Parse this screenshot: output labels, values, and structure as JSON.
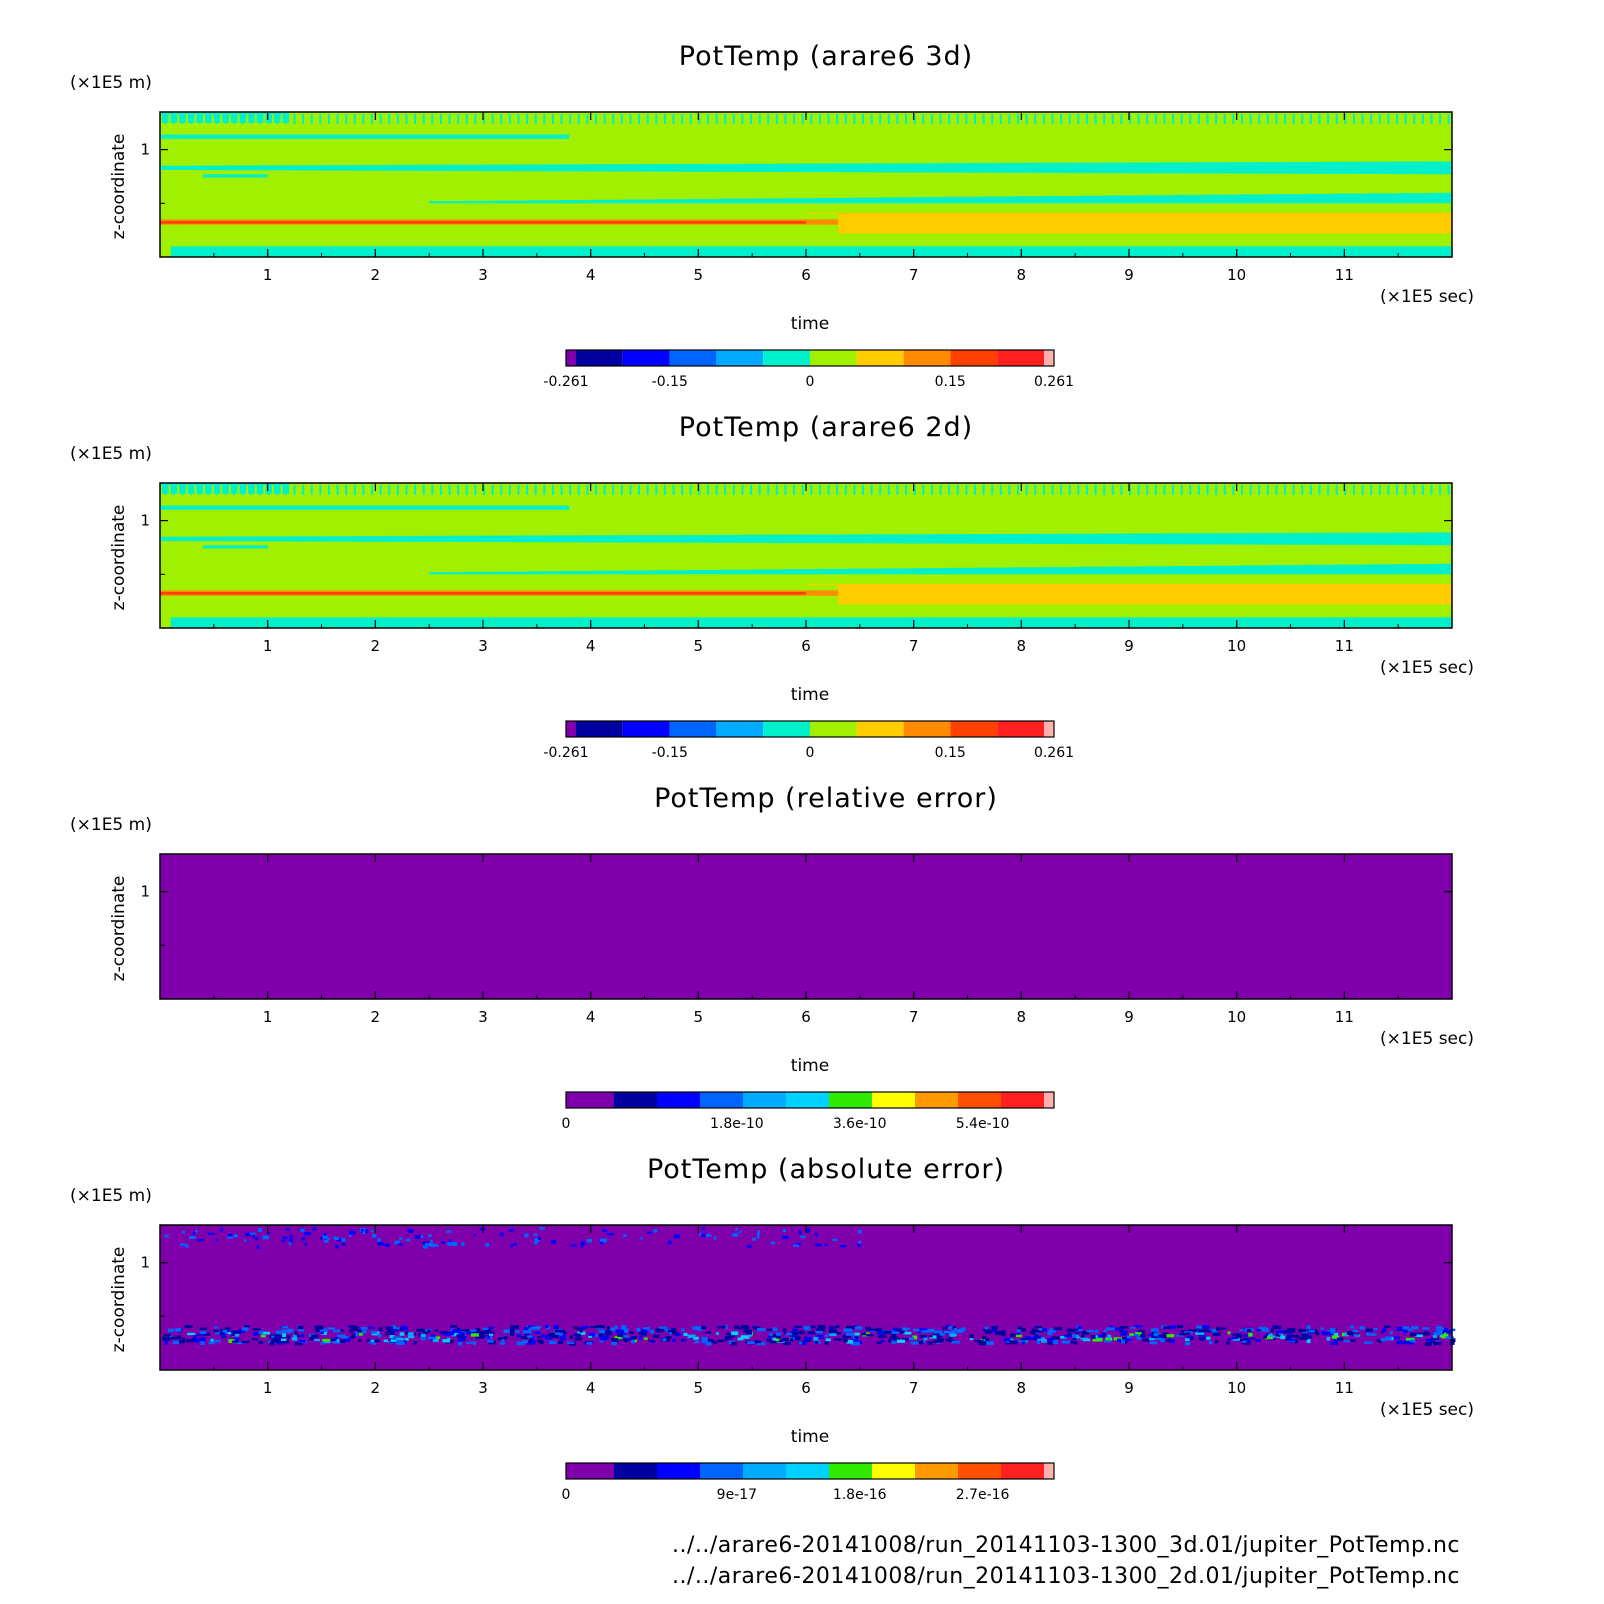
{
  "footer": {
    "line1": "../../arare6-20141008/run_20141103-1300_3d.01/jupiter_PotTemp.nc",
    "line2": "../../arare6-20141008/run_20141103-1300_2d.01/jupiter_PotTemp.nc"
  },
  "chart_data": [
    {
      "type": "heatmap",
      "title": "PotTemp (arare6 3d)",
      "xlabel": "time",
      "ylabel": "z-coordinate",
      "x_unit": "(×1E5 sec)",
      "y_unit": "(×1E5 m)",
      "xlim": [
        0,
        12
      ],
      "x_ticks": [
        "1",
        "2",
        "3",
        "4",
        "5",
        "6",
        "7",
        "8",
        "9",
        "10",
        "11"
      ],
      "y_ticks": [
        "1"
      ],
      "colorbar": {
        "colors": [
          "#7f00aa",
          "#0000a0",
          "#0000ff",
          "#0064ff",
          "#00aaff",
          "#00f0cc",
          "#a0f000",
          "#ffcc00",
          "#ff8c00",
          "#ff4000",
          "#ff2020",
          "#ffb0b0"
        ],
        "labels": [
          {
            "value": -0.261,
            "text": "-0.261"
          },
          {
            "value": -0.15,
            "text": "-0.15"
          },
          {
            "value": 0,
            "text": "0"
          },
          {
            "value": 0.15,
            "text": "0.15"
          },
          {
            "value": 0.261,
            "text": "0.261"
          }
        ],
        "range": [
          -0.261,
          0.261
        ]
      },
      "field": "pottemp"
    },
    {
      "type": "heatmap",
      "title": "PotTemp (arare6 2d)",
      "xlabel": "time",
      "ylabel": "z-coordinate",
      "x_unit": "(×1E5 sec)",
      "y_unit": "(×1E5 m)",
      "xlim": [
        0,
        12
      ],
      "x_ticks": [
        "1",
        "2",
        "3",
        "4",
        "5",
        "6",
        "7",
        "8",
        "9",
        "10",
        "11"
      ],
      "y_ticks": [
        "1"
      ],
      "colorbar": {
        "colors": [
          "#7f00aa",
          "#0000a0",
          "#0000ff",
          "#0064ff",
          "#00aaff",
          "#00f0cc",
          "#a0f000",
          "#ffcc00",
          "#ff8c00",
          "#ff4000",
          "#ff2020",
          "#ffb0b0"
        ],
        "labels": [
          {
            "value": -0.261,
            "text": "-0.261"
          },
          {
            "value": -0.15,
            "text": "-0.15"
          },
          {
            "value": 0,
            "text": "0"
          },
          {
            "value": 0.15,
            "text": "0.15"
          },
          {
            "value": 0.261,
            "text": "0.261"
          }
        ],
        "range": [
          -0.261,
          0.261
        ]
      },
      "field": "pottemp"
    },
    {
      "type": "heatmap",
      "title": "PotTemp (relative error)",
      "xlabel": "time",
      "ylabel": "z-coordinate",
      "x_unit": "(×1E5 sec)",
      "y_unit": "(×1E5 m)",
      "xlim": [
        0,
        12
      ],
      "x_ticks": [
        "1",
        "2",
        "3",
        "4",
        "5",
        "6",
        "7",
        "8",
        "9",
        "10",
        "11"
      ],
      "y_ticks": [
        "1"
      ],
      "colorbar": {
        "colors": [
          "#7f00aa",
          "#0000a0",
          "#0000ff",
          "#0064ff",
          "#00aaff",
          "#00d2ff",
          "#30e800",
          "#ffff00",
          "#ff9900",
          "#ff5000",
          "#ff2020",
          "#ffb0b0"
        ],
        "labels": [
          {
            "value": 0,
            "text": "0"
          },
          {
            "value": 1.8e-10,
            "text": "1.8e-10"
          },
          {
            "value": 3.6e-10,
            "text": "3.6e-10"
          },
          {
            "value": 5.4e-10,
            "text": "5.4e-10"
          }
        ],
        "range": [
          0,
          6.3e-10
        ]
      },
      "field": "relerr"
    },
    {
      "type": "heatmap",
      "title": "PotTemp (absolute error)",
      "xlabel": "time",
      "ylabel": "z-coordinate",
      "x_unit": "(×1E5 sec)",
      "y_unit": "(×1E5 m)",
      "xlim": [
        0,
        12
      ],
      "x_ticks": [
        "1",
        "2",
        "3",
        "4",
        "5",
        "6",
        "7",
        "8",
        "9",
        "10",
        "11"
      ],
      "y_ticks": [
        "1"
      ],
      "colorbar": {
        "colors": [
          "#7f00aa",
          "#0000a0",
          "#0000ff",
          "#0064ff",
          "#00aaff",
          "#00d2ff",
          "#30e800",
          "#ffff00",
          "#ff9900",
          "#ff5000",
          "#ff2020",
          "#ffb0b0"
        ],
        "labels": [
          {
            "value": 0,
            "text": "0"
          },
          {
            "value": 9e-17,
            "text": "9e-17"
          },
          {
            "value": 1.8e-16,
            "text": "1.8e-16"
          },
          {
            "value": 2.7e-16,
            "text": "2.7e-16"
          }
        ],
        "range": [
          0,
          3.15e-16
        ]
      },
      "field": "abserr"
    }
  ]
}
